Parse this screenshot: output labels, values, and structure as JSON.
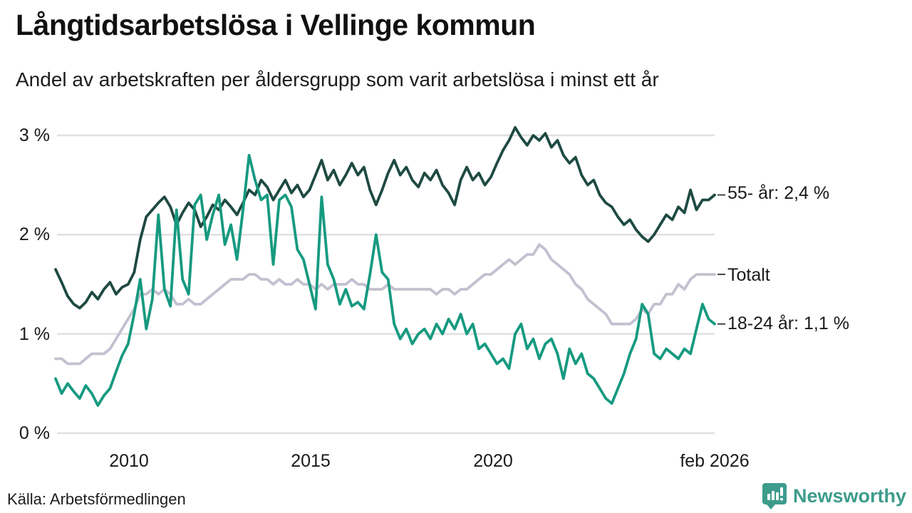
{
  "header": {
    "title": "Långtidsarbetslösa i Vellinge kommun",
    "subtitle": "Andel av arbetskraften per åldersgrupp som varit arbetslösa i minst ett år"
  },
  "footer": {
    "source": "Källa: Arbetsförmedlingen",
    "brand_name": "Newsworthy",
    "brand_icon": "bar-chart-speech-bubble-icon",
    "brand_color": "#3d9c8c"
  },
  "colors": {
    "series_55": "#1e4a42",
    "series_total": "#c2c1cf",
    "series_1824": "#169a80",
    "gridline": "#e0e0e0",
    "label_dash": "#444444",
    "text": "#1a1a1a"
  },
  "chart_data": {
    "type": "line",
    "title": "Långtidsarbetslösa i Vellinge kommun",
    "subtitle": "Andel av arbetskraften per åldersgrupp som varit arbetslösa i minst ett år",
    "unit": "% av arbetskraften",
    "x_start": 2008.0,
    "x_end": 2026.083,
    "x_step_months": 2,
    "grid": "horizontal-only",
    "legend_position": "right-end-of-line",
    "ylim": [
      0,
      3.2
    ],
    "y_ticks": [
      {
        "label": "3 %",
        "value": 3
      },
      {
        "label": "2 %",
        "value": 2
      },
      {
        "label": "1 %",
        "value": 1
      },
      {
        "label": "0 %",
        "value": 0
      }
    ],
    "x_ticks": [
      {
        "label": "2010",
        "year": 2010
      },
      {
        "label": "2015",
        "year": 2015
      },
      {
        "label": "2020",
        "year": 2020
      },
      {
        "label": "feb 2026",
        "year": 2026.083
      }
    ],
    "series": [
      {
        "name": "55- år",
        "end_label": "55- år: 2,4 %",
        "end_value": 2.4,
        "color": "#1e4a42",
        "values": [
          1.65,
          1.52,
          1.38,
          1.3,
          1.26,
          1.32,
          1.42,
          1.35,
          1.45,
          1.52,
          1.4,
          1.47,
          1.5,
          1.62,
          1.95,
          2.18,
          2.25,
          2.32,
          2.38,
          2.28,
          2.1,
          2.22,
          2.32,
          2.25,
          2.08,
          2.18,
          2.3,
          2.25,
          2.35,
          2.28,
          2.2,
          2.32,
          2.45,
          2.4,
          2.55,
          2.48,
          2.35,
          2.45,
          2.55,
          2.42,
          2.5,
          2.38,
          2.45,
          2.6,
          2.75,
          2.55,
          2.65,
          2.5,
          2.6,
          2.72,
          2.6,
          2.68,
          2.45,
          2.3,
          2.45,
          2.62,
          2.75,
          2.6,
          2.68,
          2.55,
          2.48,
          2.62,
          2.55,
          2.65,
          2.5,
          2.42,
          2.3,
          2.55,
          2.68,
          2.55,
          2.62,
          2.5,
          2.58,
          2.72,
          2.85,
          2.95,
          3.08,
          2.98,
          2.9,
          3.0,
          2.95,
          3.02,
          2.88,
          2.95,
          2.8,
          2.72,
          2.78,
          2.6,
          2.5,
          2.55,
          2.4,
          2.32,
          2.28,
          2.18,
          2.1,
          2.15,
          2.05,
          1.98,
          1.93,
          2.0,
          2.1,
          2.2,
          2.15,
          2.28,
          2.22,
          2.45,
          2.25,
          2.35,
          2.35,
          2.4
        ]
      },
      {
        "name": "Totalt",
        "end_label": "Totalt",
        "end_value": 1.6,
        "color": "#c2c1cf",
        "values": [
          0.75,
          0.75,
          0.7,
          0.7,
          0.7,
          0.75,
          0.8,
          0.8,
          0.8,
          0.85,
          0.95,
          1.05,
          1.15,
          1.25,
          1.4,
          1.4,
          1.45,
          1.4,
          1.45,
          1.4,
          1.3,
          1.3,
          1.35,
          1.3,
          1.3,
          1.35,
          1.4,
          1.45,
          1.5,
          1.55,
          1.55,
          1.55,
          1.6,
          1.6,
          1.55,
          1.55,
          1.5,
          1.55,
          1.5,
          1.5,
          1.55,
          1.5,
          1.5,
          1.45,
          1.5,
          1.45,
          1.5,
          1.5,
          1.5,
          1.55,
          1.5,
          1.5,
          1.45,
          1.45,
          1.45,
          1.5,
          1.45,
          1.45,
          1.45,
          1.45,
          1.45,
          1.45,
          1.45,
          1.4,
          1.45,
          1.45,
          1.4,
          1.45,
          1.45,
          1.5,
          1.55,
          1.6,
          1.6,
          1.65,
          1.7,
          1.75,
          1.7,
          1.75,
          1.8,
          1.8,
          1.9,
          1.85,
          1.75,
          1.7,
          1.65,
          1.6,
          1.5,
          1.45,
          1.35,
          1.3,
          1.25,
          1.2,
          1.1,
          1.1,
          1.1,
          1.1,
          1.15,
          1.25,
          1.2,
          1.3,
          1.3,
          1.4,
          1.4,
          1.5,
          1.45,
          1.55,
          1.6,
          1.6,
          1.6,
          1.6
        ]
      },
      {
        "name": "18-24 år",
        "end_label": "18-24 år: 1,1 %",
        "end_value": 1.1,
        "color": "#169a80",
        "values": [
          0.55,
          0.4,
          0.5,
          0.42,
          0.35,
          0.48,
          0.4,
          0.28,
          0.38,
          0.45,
          0.62,
          0.78,
          0.9,
          1.2,
          1.55,
          1.05,
          1.35,
          2.2,
          1.45,
          1.28,
          2.25,
          1.55,
          1.4,
          2.3,
          2.4,
          1.95,
          2.2,
          2.4,
          1.9,
          2.1,
          1.75,
          2.25,
          2.8,
          2.55,
          2.35,
          2.4,
          1.7,
          2.35,
          2.4,
          2.28,
          1.85,
          1.75,
          1.5,
          1.25,
          2.38,
          1.7,
          1.55,
          1.3,
          1.45,
          1.28,
          1.32,
          1.25,
          1.6,
          2.0,
          1.62,
          1.55,
          1.1,
          0.95,
          1.05,
          0.9,
          1.0,
          1.05,
          0.95,
          1.1,
          1.0,
          1.15,
          1.05,
          1.2,
          1.0,
          1.1,
          0.85,
          0.9,
          0.8,
          0.7,
          0.75,
          0.65,
          1.0,
          1.1,
          0.85,
          0.95,
          0.75,
          0.9,
          0.95,
          0.8,
          0.55,
          0.85,
          0.7,
          0.8,
          0.6,
          0.55,
          0.45,
          0.35,
          0.3,
          0.45,
          0.6,
          0.8,
          0.95,
          1.3,
          1.2,
          0.8,
          0.75,
          0.85,
          0.8,
          0.75,
          0.85,
          0.8,
          1.05,
          1.3,
          1.15,
          1.1
        ]
      }
    ]
  }
}
